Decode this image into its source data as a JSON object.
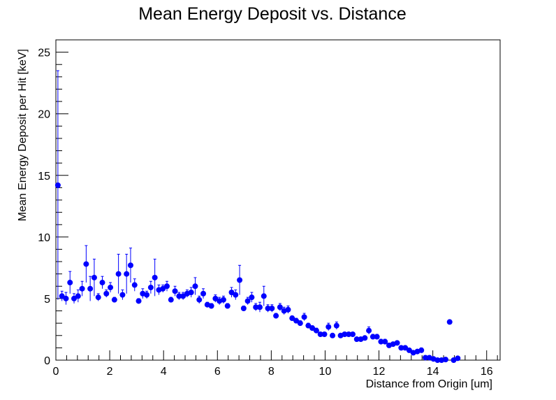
{
  "chart_data": {
    "type": "scatter",
    "title": "Mean Energy Deposit vs. Distance",
    "xlabel": "Distance from Origin [um]",
    "ylabel": "Mean Energy Deposit per Hit [keV]",
    "xlim": [
      0,
      16.5
    ],
    "ylim": [
      0,
      26
    ],
    "x_ticks": [
      0,
      2,
      4,
      6,
      8,
      10,
      12,
      14,
      16
    ],
    "x_tick_labels": [
      "0",
      "2",
      "4",
      "6",
      "8",
      "10",
      "12",
      "14",
      "16"
    ],
    "y_ticks": [
      0,
      5,
      10,
      15,
      20,
      25
    ],
    "y_tick_labels": [
      "0",
      "5",
      "10",
      "15",
      "20",
      "25"
    ],
    "grid": false,
    "marker_color": "#0000ff",
    "series": [
      {
        "x": [
          0.075,
          0.225,
          0.375,
          0.525,
          0.675,
          0.825,
          0.975,
          1.125,
          1.275,
          1.425,
          1.575,
          1.725,
          1.875,
          2.025,
          2.175,
          2.325,
          2.475,
          2.625,
          2.775,
          2.925,
          3.075,
          3.225,
          3.375,
          3.525,
          3.675,
          3.825,
          3.975,
          4.125,
          4.275,
          4.425,
          4.575,
          4.725,
          4.875,
          5.025,
          5.175,
          5.325,
          5.475,
          5.625,
          5.775,
          5.925,
          6.075,
          6.225,
          6.375,
          6.525,
          6.675,
          6.825,
          6.975,
          7.125,
          7.275,
          7.425,
          7.575,
          7.725,
          7.875,
          8.025,
          8.175,
          8.325,
          8.475,
          8.625,
          8.775,
          8.925,
          9.075,
          9.225,
          9.375,
          9.525,
          9.675,
          9.825,
          9.975,
          10.125,
          10.275,
          10.425,
          10.575,
          10.725,
          10.875,
          11.025,
          11.175,
          11.325,
          11.475,
          11.625,
          11.775,
          11.925,
          12.075,
          12.225,
          12.375,
          12.525,
          12.675,
          12.825,
          12.975,
          13.125,
          13.275,
          13.425,
          13.575,
          13.725,
          13.875,
          14.025,
          14.175,
          14.325,
          14.475,
          14.625,
          14.775,
          14.925
        ],
        "y": [
          14.2,
          5.2,
          5.0,
          6.3,
          5.0,
          5.2,
          5.8,
          7.8,
          5.8,
          6.7,
          5.1,
          6.3,
          5.4,
          5.9,
          4.9,
          7.0,
          5.3,
          7.0,
          7.7,
          6.1,
          4.8,
          5.4,
          5.3,
          5.9,
          6.7,
          5.7,
          5.8,
          6.0,
          4.9,
          5.6,
          5.2,
          5.2,
          5.4,
          5.5,
          6.0,
          4.9,
          5.4,
          4.5,
          4.4,
          5.0,
          4.8,
          4.9,
          4.4,
          5.5,
          5.3,
          6.5,
          4.2,
          4.8,
          5.1,
          4.3,
          4.3,
          5.2,
          4.2,
          4.2,
          3.6,
          4.3,
          4.0,
          4.1,
          3.4,
          3.2,
          3.0,
          3.5,
          2.8,
          2.6,
          2.4,
          2.1,
          2.1,
          2.7,
          2.0,
          2.8,
          2.0,
          2.1,
          2.1,
          2.1,
          1.7,
          1.7,
          1.8,
          2.4,
          1.9,
          1.9,
          1.5,
          1.5,
          1.2,
          1.3,
          1.4,
          1.0,
          1.0,
          0.8,
          0.6,
          0.7,
          0.8,
          0.2,
          0.2,
          0.1,
          0.0,
          0.0,
          0.05,
          3.1,
          0.0,
          0.15
        ],
        "y_err": [
          9.3,
          0.4,
          0.5,
          0.9,
          0.4,
          0.5,
          0.6,
          1.5,
          1.0,
          1.5,
          0.3,
          0.5,
          0.3,
          0.4,
          0.2,
          1.6,
          0.4,
          1.6,
          1.4,
          0.5,
          0.2,
          0.4,
          0.3,
          0.5,
          1.5,
          0.4,
          0.3,
          0.4,
          0.2,
          0.4,
          0.3,
          0.3,
          0.3,
          0.4,
          0.7,
          0.3,
          0.4,
          0.2,
          0.2,
          0.3,
          0.3,
          0.3,
          0.2,
          0.4,
          0.4,
          1.2,
          0.2,
          0.3,
          0.4,
          0.3,
          0.4,
          0.8,
          0.3,
          0.3,
          0.2,
          0.3,
          0.3,
          0.3,
          0.2,
          0.2,
          0.2,
          0.3,
          0.2,
          0.2,
          0.2,
          0.15,
          0.15,
          0.3,
          0.15,
          0.3,
          0.15,
          0.15,
          0.15,
          0.15,
          0.15,
          0.15,
          0.15,
          0.3,
          0.2,
          0.2,
          0.2,
          0.2,
          0.15,
          0.15,
          0.15,
          0.15,
          0.15,
          0.15,
          0.15,
          0.15,
          0.2,
          0.1,
          0.1,
          0.1,
          0.05,
          0.05,
          0.05,
          0.15,
          0.05,
          0.1
        ]
      }
    ]
  }
}
